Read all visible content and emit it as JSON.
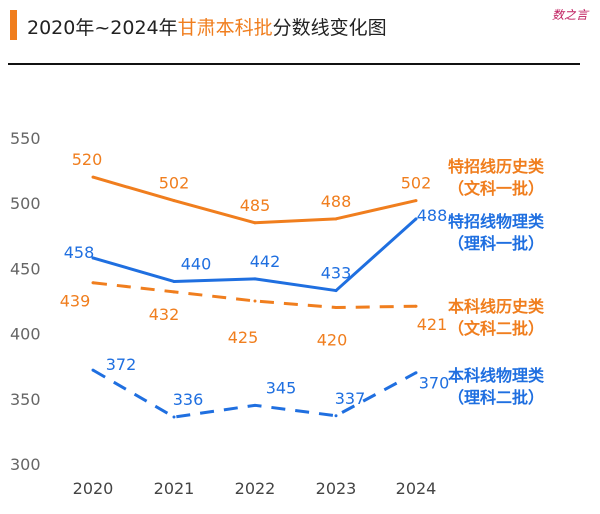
{
  "title": {
    "prefix": "2020年~2024年",
    "highlight": "甘肃本科批",
    "suffix": "分数线变化图"
  },
  "watermark": "数之言",
  "colors": {
    "orange": "#F07E1E",
    "blue": "#1F6FE0"
  },
  "chart_data": {
    "type": "line",
    "categories": [
      "2020",
      "2021",
      "2022",
      "2023",
      "2024"
    ],
    "ylim": [
      300,
      550
    ],
    "yticks": [
      "300",
      "350",
      "400",
      "450",
      "500",
      "550"
    ],
    "xlabel": "",
    "ylabel": "",
    "series": [
      {
        "name": "特招线历史类（文科一批）",
        "legend_line1": "特招线历史类",
        "legend_line2": "（文科一批）",
        "values": [
          520,
          502,
          485,
          488,
          502
        ],
        "color": "#F07E1E",
        "dash": false
      },
      {
        "name": "特招线物理类（理科一批）",
        "legend_line1": "特招线物理类",
        "legend_line2": "（理科一批）",
        "values": [
          458,
          440,
          442,
          433,
          488
        ],
        "color": "#1F6FE0",
        "dash": false
      },
      {
        "name": "本科线历史类（文科二批）",
        "legend_line1": "本科线历史类",
        "legend_line2": "（文科二批）",
        "values": [
          439,
          432,
          425,
          420,
          421
        ],
        "color": "#F07E1E",
        "dash": true
      },
      {
        "name": "本科线物理类（理科二批）",
        "legend_line1": "本科线物理类",
        "legend_line2": "（理科二批）",
        "values": [
          372,
          336,
          345,
          337,
          370
        ],
        "color": "#1F6FE0",
        "dash": true
      }
    ]
  }
}
